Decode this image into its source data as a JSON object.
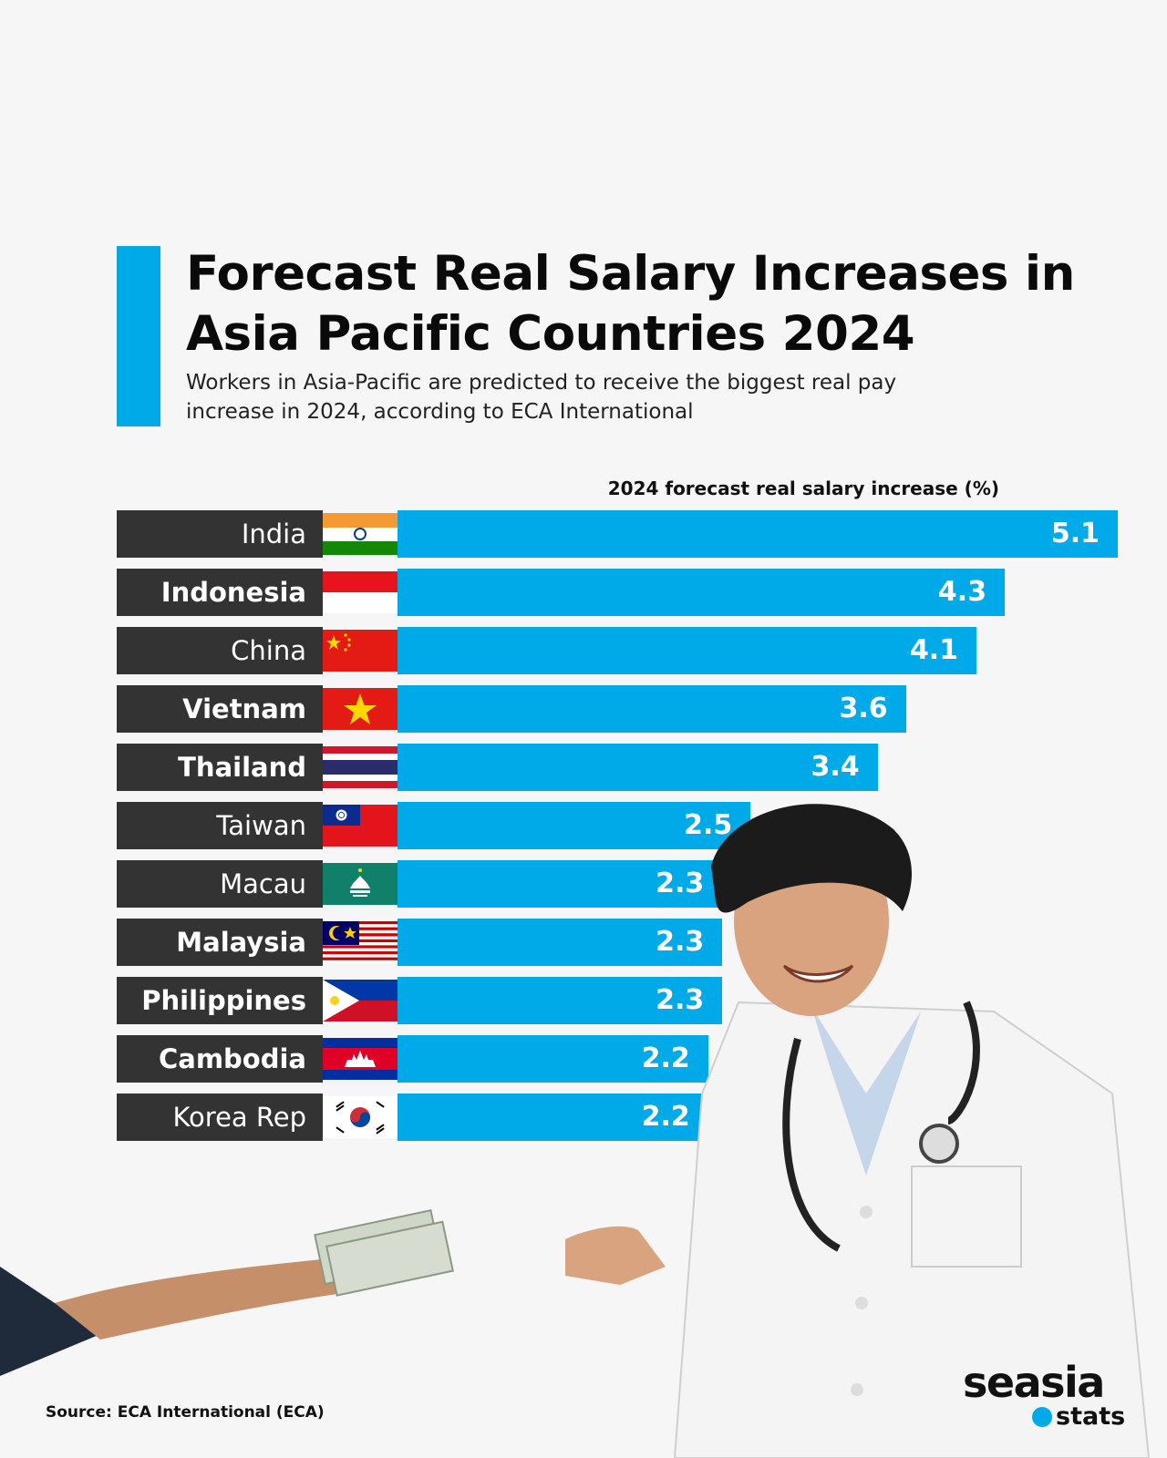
{
  "header": {
    "title": "Forecast Real Salary Increases in Asia Pacific Countries 2024",
    "subtitle": "Workers in Asia-Pacific are predicted to receive the biggest real pay increase in 2024, according to ECA International"
  },
  "colors": {
    "accent": "#00a9e8",
    "label_bg": "#333333",
    "background": "#f6f6f6"
  },
  "chart_data": {
    "type": "bar",
    "orientation": "horizontal",
    "ylabel": "2024 forecast real salary increase (%)",
    "categories": [
      "India",
      "Indonesia",
      "China",
      "Vietnam",
      "Thailand",
      "Taiwan",
      "Macau",
      "Malaysia",
      "Philippines",
      "Cambodia",
      "Korea Rep"
    ],
    "values": [
      5.1,
      4.3,
      4.1,
      3.6,
      3.4,
      2.5,
      2.3,
      2.3,
      2.3,
      2.2,
      2.2
    ],
    "value_labels": [
      "5.1",
      "4.3",
      "4.1",
      "3.6",
      "3.4",
      "2.5",
      "2.3",
      "2.3",
      "2.3",
      "2.2",
      "2.2"
    ],
    "bold_labels": [
      false,
      true,
      false,
      true,
      true,
      false,
      false,
      true,
      true,
      true,
      false
    ],
    "flags": [
      "india-flag-icon",
      "indonesia-flag-icon",
      "china-flag-icon",
      "vietnam-flag-icon",
      "thailand-flag-icon",
      "taiwan-flag-icon",
      "macau-flag-icon",
      "malaysia-flag-icon",
      "philippines-flag-icon",
      "cambodia-flag-icon",
      "korea-flag-icon"
    ],
    "xlim": [
      0,
      5.1
    ],
    "grid": false,
    "legend": "none"
  },
  "footer": {
    "source": "Source: ECA International (ECA)",
    "logo_main": "seasia",
    "logo_sub": "stats"
  }
}
